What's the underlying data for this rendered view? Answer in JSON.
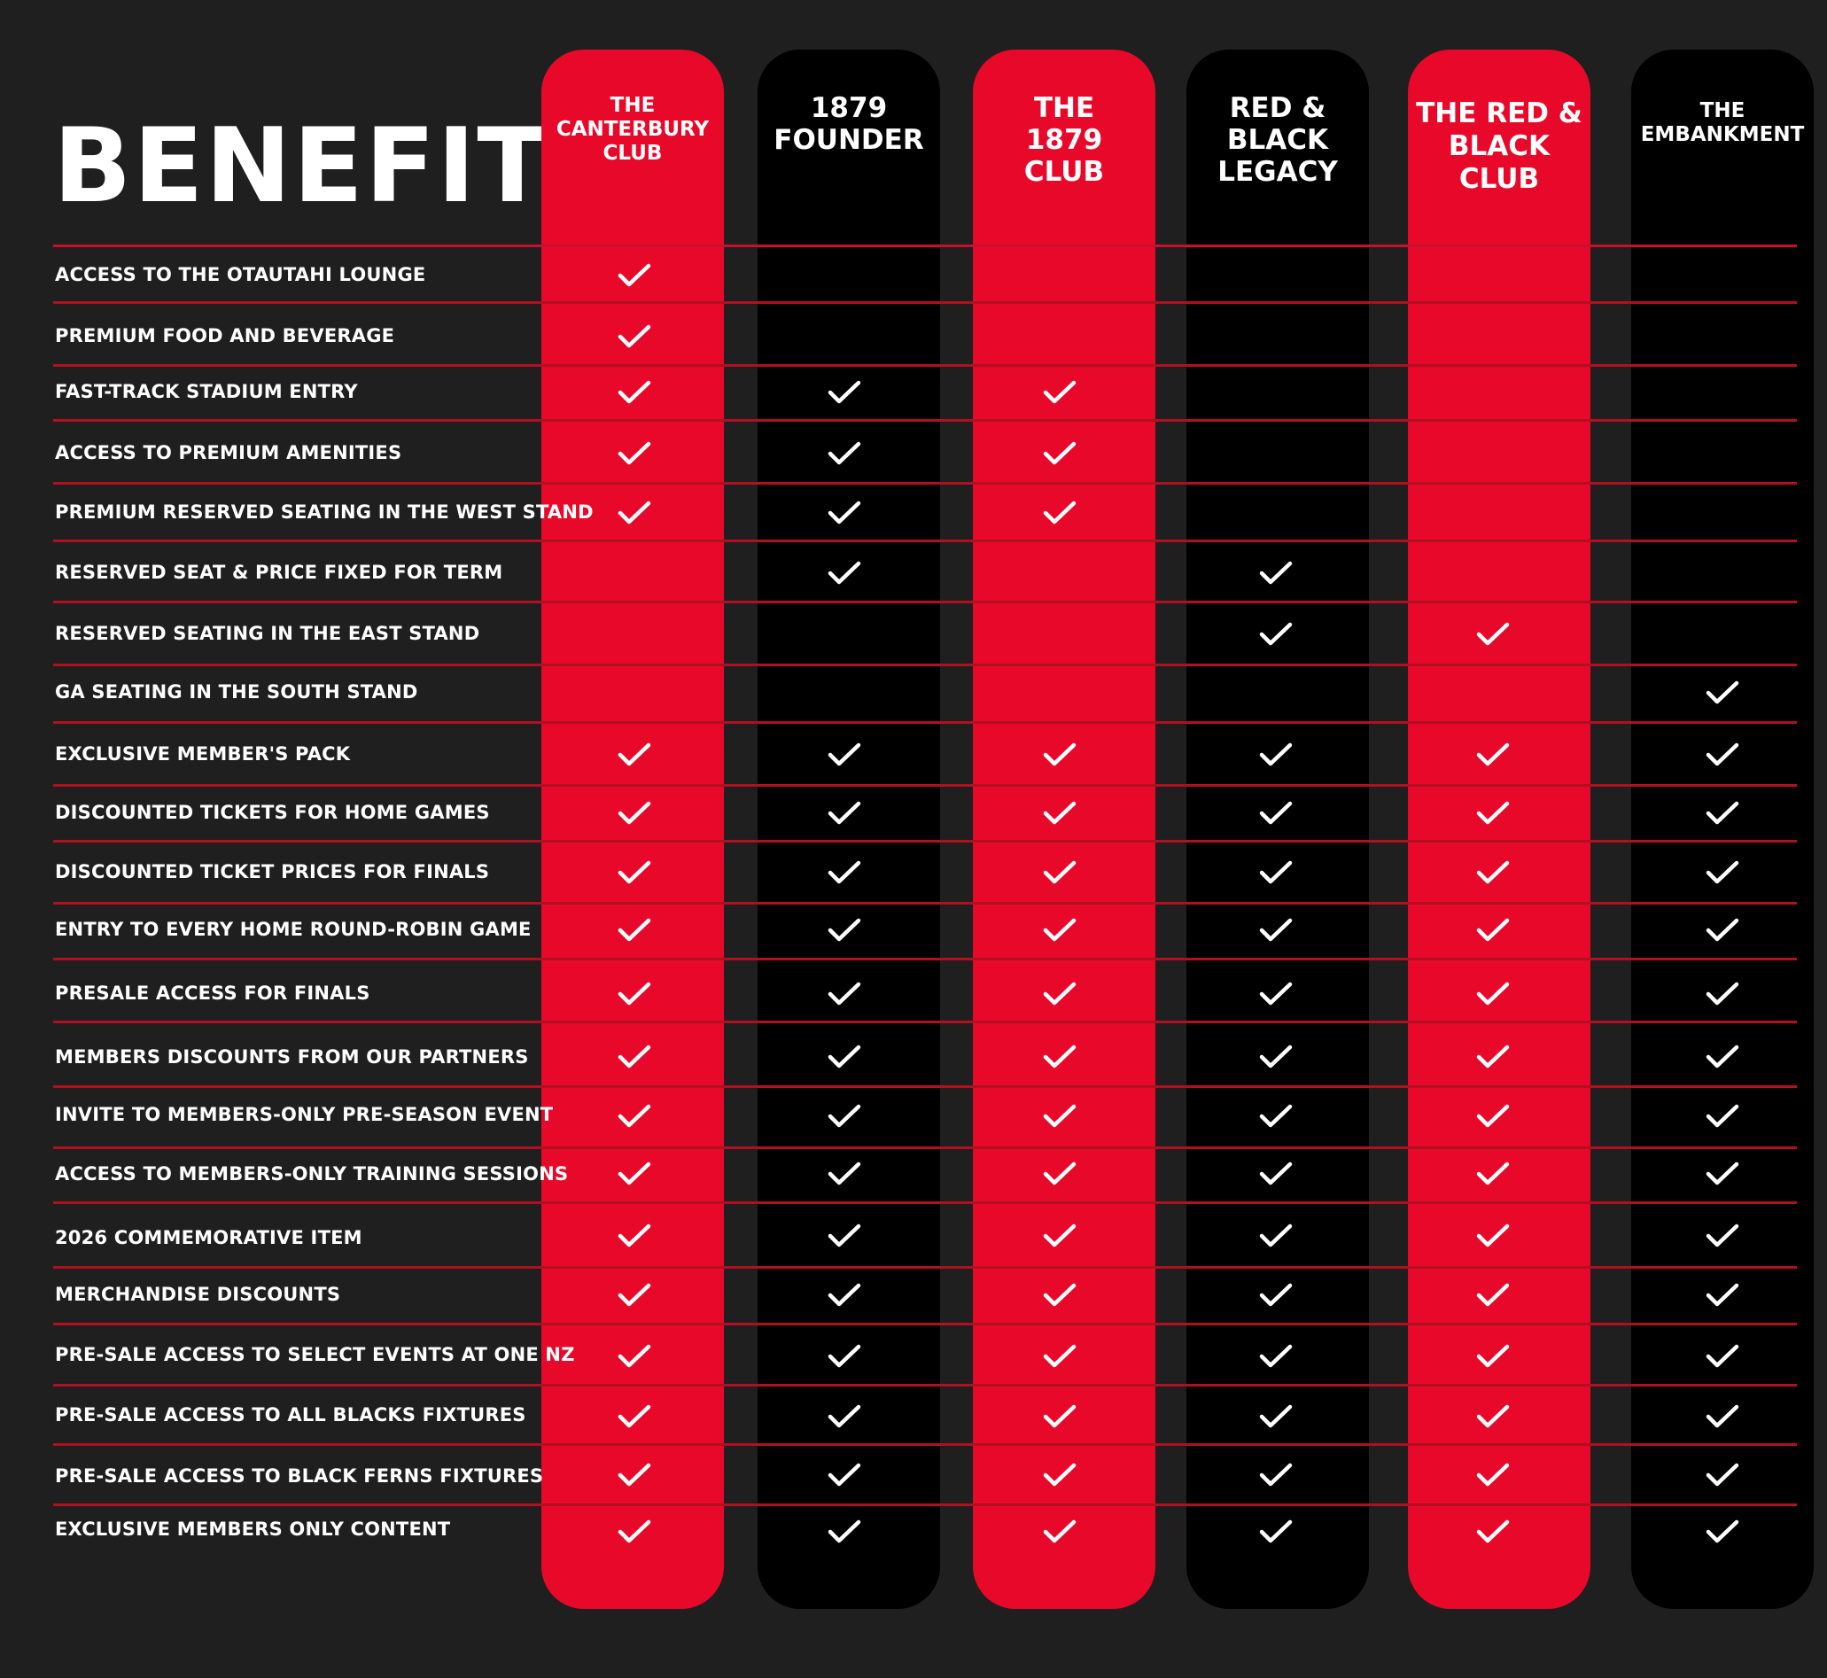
{
  "page": {
    "title": "BENEFITS"
  },
  "colors": {
    "background": "#1f1f1f",
    "red": "#e8092a",
    "black": "#000000",
    "rule": "#b0101f",
    "check": "#ffffff"
  },
  "tiers": [
    {
      "label": "THE\nCANTERBURY\nCLUB",
      "color": "red"
    },
    {
      "label": "1879\nFOUNDER",
      "color": "black"
    },
    {
      "label": "THE\n1879\nCLUB",
      "color": "red"
    },
    {
      "label": "RED &\nBLACK\nLEGACY",
      "color": "black"
    },
    {
      "label": "THE RED &\nBLACK CLUB",
      "color": "red"
    },
    {
      "label": "THE\nEMBANKMENT",
      "color": "black"
    }
  ],
  "benefits": [
    {
      "label": "ACCESS TO THE OTAUTAHI LOUNGE",
      "checks": [
        true,
        false,
        false,
        false,
        false,
        false
      ]
    },
    {
      "label": "PREMIUM FOOD AND BEVERAGE",
      "checks": [
        true,
        false,
        false,
        false,
        false,
        false
      ]
    },
    {
      "label": "FAST-TRACK STADIUM ENTRY",
      "checks": [
        true,
        true,
        true,
        false,
        false,
        false
      ]
    },
    {
      "label": "ACCESS TO PREMIUM AMENITIES",
      "checks": [
        true,
        true,
        true,
        false,
        false,
        false
      ]
    },
    {
      "label": "PREMIUM RESERVED SEATING IN THE WEST STAND",
      "checks": [
        true,
        true,
        true,
        false,
        false,
        false
      ]
    },
    {
      "label": "RESERVED SEAT & PRICE FIXED FOR TERM",
      "checks": [
        false,
        true,
        false,
        true,
        false,
        false
      ]
    },
    {
      "label": "RESERVED SEATING IN THE EAST STAND",
      "checks": [
        false,
        false,
        false,
        true,
        true,
        false
      ]
    },
    {
      "label": "GA SEATING IN THE SOUTH STAND",
      "checks": [
        false,
        false,
        false,
        false,
        false,
        true
      ]
    },
    {
      "label": "EXCLUSIVE MEMBER'S PACK",
      "checks": [
        true,
        true,
        true,
        true,
        true,
        true
      ]
    },
    {
      "label": "DISCOUNTED TICKETS FOR HOME GAMES",
      "checks": [
        true,
        true,
        true,
        true,
        true,
        true
      ]
    },
    {
      "label": "DISCOUNTED TICKET PRICES FOR FINALS",
      "checks": [
        true,
        true,
        true,
        true,
        true,
        true
      ]
    },
    {
      "label": "ENTRY TO EVERY HOME ROUND-ROBIN GAME",
      "checks": [
        true,
        true,
        true,
        true,
        true,
        true
      ]
    },
    {
      "label": "PRESALE ACCESS FOR FINALS",
      "checks": [
        true,
        true,
        true,
        true,
        true,
        true
      ]
    },
    {
      "label": "MEMBERS DISCOUNTS FROM OUR PARTNERS",
      "checks": [
        true,
        true,
        true,
        true,
        true,
        true
      ]
    },
    {
      "label": "INVITE TO MEMBERS-ONLY PRE-SEASON EVENT",
      "checks": [
        true,
        true,
        true,
        true,
        true,
        true
      ]
    },
    {
      "label": "ACCESS TO MEMBERS-ONLY TRAINING SESSIONS",
      "checks": [
        true,
        true,
        true,
        true,
        true,
        true
      ]
    },
    {
      "label": "2026 COMMEMORATIVE ITEM",
      "checks": [
        true,
        true,
        true,
        true,
        true,
        true
      ]
    },
    {
      "label": "MERCHANDISE DISCOUNTS",
      "checks": [
        true,
        true,
        true,
        true,
        true,
        true
      ]
    },
    {
      "label": "PRE-SALE ACCESS TO SELECT EVENTS AT ONE NZ",
      "checks": [
        true,
        true,
        true,
        true,
        true,
        true
      ]
    },
    {
      "label": "PRE-SALE ACCESS TO ALL BLACKS FIXTURES",
      "checks": [
        true,
        true,
        true,
        true,
        true,
        true
      ]
    },
    {
      "label": "PRE-SALE ACCESS TO BLACK FERNS FIXTURES",
      "checks": [
        true,
        true,
        true,
        true,
        true,
        true
      ]
    },
    {
      "label": "EXCLUSIVE MEMBERS ONLY CONTENT",
      "checks": [
        true,
        true,
        true,
        true,
        true,
        true
      ]
    }
  ]
}
